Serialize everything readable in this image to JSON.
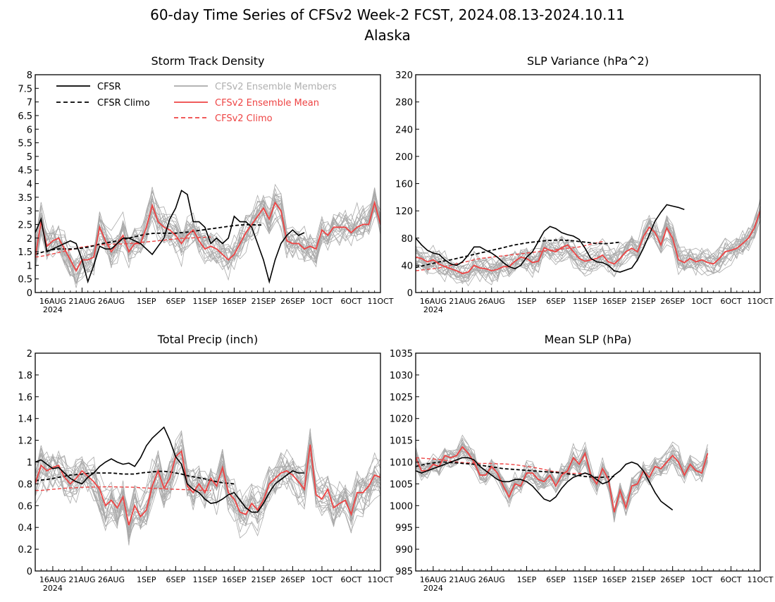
{
  "header": {
    "title": "60-day Time Series of CFSv2 Week-2 FCST, 2024.08.13-2024.10.11",
    "subtitle": "Alaska"
  },
  "colors": {
    "cfsr": "#000000",
    "cfsr_climo": "#000000",
    "members": "#aaaaaa",
    "ens_mean": "#ee4444",
    "cfsv2_climo": "#ee4444"
  },
  "legend": {
    "cfsr": "CFSR",
    "cfsr_climo": "CFSR Climo",
    "members": "CFSv2 Ensemble Members",
    "ens_mean": "CFSv2 Ensemble Mean",
    "cfsv2_climo": "CFSv2 Climo"
  },
  "x_axis": {
    "year_label": "2024",
    "ticks": [
      {
        "label": "16AUG",
        "day": 3
      },
      {
        "label": "21AUG",
        "day": 8
      },
      {
        "label": "26AUG",
        "day": 13
      },
      {
        "label": "1SEP",
        "day": 19
      },
      {
        "label": "6SEP",
        "day": 24
      },
      {
        "label": "11SEP",
        "day": 29
      },
      {
        "label": "16SEP",
        "day": 34
      },
      {
        "label": "21SEP",
        "day": 39
      },
      {
        "label": "26SEP",
        "day": 44
      },
      {
        "label": "1OCT",
        "day": 49
      },
      {
        "label": "6OCT",
        "day": 54
      },
      {
        "label": "11OCT",
        "day": 59
      }
    ]
  },
  "chart_data": [
    {
      "type": "line",
      "title": "Storm Track Density",
      "ylim": [
        0,
        8
      ],
      "yticks": [
        "0",
        "0.5",
        "1",
        "1.5",
        "2",
        "2.5",
        "3",
        "3.5",
        "4",
        "4.5",
        "5",
        "5.5",
        "6",
        "6.5",
        "7",
        "7.5",
        "8"
      ],
      "member_spread": 0.75,
      "series": [
        {
          "role": "cfsr",
          "values": [
            2.2,
            2.7,
            1.5,
            1.6,
            1.7,
            1.8,
            1.9,
            1.8,
            1.2,
            0.4,
            1.0,
            1.7,
            1.6,
            1.6,
            1.8,
            2.0,
            2.0,
            1.9,
            1.8,
            1.6,
            1.4,
            1.7,
            2.0,
            2.7,
            3.1,
            3.75,
            3.6,
            2.6,
            2.6,
            2.4,
            1.8,
            2.0,
            1.8,
            2.0,
            2.8,
            2.6,
            2.6,
            2.4,
            1.8,
            1.2,
            0.4,
            1.2,
            1.8,
            2.1,
            2.3,
            2.1,
            2.2
          ]
        },
        {
          "role": "cfsr_climo",
          "values": [
            1.4,
            1.47,
            1.53,
            1.58,
            1.6,
            1.6,
            1.6,
            1.61,
            1.63,
            1.67,
            1.72,
            1.78,
            1.82,
            1.86,
            1.9,
            1.95,
            2.0,
            2.05,
            2.1,
            2.14,
            2.17,
            2.18,
            2.18,
            2.18,
            2.18,
            2.2,
            2.22,
            2.25,
            2.28,
            2.31,
            2.34,
            2.37,
            2.4,
            2.43,
            2.46,
            2.48,
            2.49,
            2.49,
            2.48,
            2.48
          ]
        },
        {
          "role": "ens_mean",
          "values": [
            1.3,
            2.6,
            1.7,
            1.9,
            2.0,
            1.6,
            1.2,
            0.8,
            1.2,
            1.2,
            1.3,
            2.4,
            1.9,
            1.5,
            1.8,
            2.1,
            1.5,
            1.8,
            1.8,
            2.4,
            3.2,
            2.6,
            2.4,
            2.3,
            2.1,
            1.8,
            2.1,
            2.3,
            1.9,
            1.6,
            1.7,
            1.6,
            1.4,
            1.2,
            1.4,
            1.8,
            2.2,
            2.5,
            2.8,
            3.1,
            2.7,
            3.3,
            3.0,
            1.9,
            1.8,
            1.8,
            1.6,
            1.7,
            1.6,
            2.3,
            2.1,
            2.4,
            2.4,
            2.4,
            2.2,
            2.4,
            2.5,
            2.5,
            3.3,
            2.5
          ]
        },
        {
          "role": "cfsv2_climo",
          "values": [
            1.3,
            1.33,
            1.37,
            1.42,
            1.47,
            1.52,
            1.57,
            1.62,
            1.67,
            1.7,
            1.73,
            1.75,
            1.76,
            1.77,
            1.78,
            1.79,
            1.8,
            1.82,
            1.84,
            1.86,
            1.88,
            1.9,
            1.92,
            1.95,
            1.97,
            1.99,
            2.0,
            2.01,
            2.02,
            2.03,
            2.04
          ]
        }
      ]
    },
    {
      "type": "line",
      "title": "SLP Variance (hPa^2)",
      "ylim": [
        0,
        320
      ],
      "yticks": [
        "0",
        "40",
        "80",
        "120",
        "160",
        "200",
        "240",
        "280",
        "320"
      ],
      "member_spread": 22,
      "series": [
        {
          "role": "cfsr",
          "values": [
            80,
            70,
            62,
            58,
            56,
            48,
            42,
            40,
            45,
            55,
            67,
            67,
            62,
            58,
            52,
            44,
            38,
            35,
            40,
            52,
            60,
            75,
            90,
            97,
            94,
            88,
            85,
            83,
            78,
            65,
            50,
            45,
            44,
            40,
            32,
            30,
            33,
            36,
            48,
            65,
            85,
            105,
            118,
            129,
            127,
            125,
            122
          ]
        },
        {
          "role": "cfsr_climo",
          "values": [
            37,
            38.8,
            41,
            43,
            45,
            46.5,
            48,
            50,
            52,
            54,
            56,
            58,
            60,
            62,
            64,
            66,
            68,
            70,
            71.5,
            73,
            74,
            75,
            76,
            76.5,
            77,
            77,
            76.5,
            76,
            75,
            74,
            73,
            72,
            72,
            72,
            73,
            74
          ]
        },
        {
          "role": "ens_mean",
          "values": [
            52,
            50,
            45,
            48,
            42,
            38,
            35,
            32,
            28,
            30,
            40,
            36,
            35,
            32,
            34,
            38,
            38,
            46,
            52,
            50,
            44,
            46,
            66,
            62,
            60,
            66,
            70,
            60,
            50,
            46,
            48,
            50,
            55,
            45,
            42,
            50,
            60,
            65,
            60,
            82,
            96,
            88,
            70,
            95,
            80,
            48,
            44,
            50,
            45,
            48,
            44,
            42,
            50,
            60,
            62,
            65,
            72,
            80,
            95,
            120,
            124
          ]
        },
        {
          "role": "cfsv2_climo",
          "values": [
            32,
            33,
            34,
            35,
            36,
            38,
            40,
            42,
            44,
            46,
            48,
            50,
            51,
            52,
            53,
            54,
            55,
            56,
            57,
            58,
            59,
            60,
            61,
            62,
            63,
            64,
            65,
            66,
            67,
            69,
            71,
            73,
            75
          ]
        }
      ]
    },
    {
      "type": "line",
      "title": "Total Precip (inch)",
      "ylim": [
        0,
        2
      ],
      "yticks": [
        "0",
        "0.2",
        "0.4",
        "0.6",
        "0.8",
        "1",
        "1.2",
        "1.4",
        "1.6",
        "1.8",
        "2"
      ],
      "member_spread": 0.22,
      "series": [
        {
          "role": "cfsr",
          "values": [
            1.0,
            1.02,
            0.98,
            0.94,
            0.95,
            0.9,
            0.85,
            0.82,
            0.8,
            0.86,
            0.9,
            0.96,
            1.0,
            1.03,
            1.0,
            0.98,
            0.99,
            0.96,
            1.04,
            1.15,
            1.22,
            1.27,
            1.32,
            1.2,
            1.05,
            0.98,
            0.8,
            0.75,
            0.72,
            0.66,
            0.62,
            0.63,
            0.66,
            0.7,
            0.72,
            0.65,
            0.58,
            0.54,
            0.54,
            0.62,
            0.72,
            0.8,
            0.84,
            0.88,
            0.92,
            0.9,
            0.9
          ]
        },
        {
          "role": "cfsr_climo",
          "values": [
            0.83,
            0.835,
            0.84,
            0.85,
            0.86,
            0.87,
            0.88,
            0.885,
            0.89,
            0.895,
            0.9,
            0.9,
            0.9,
            0.9,
            0.895,
            0.89,
            0.89,
            0.89,
            0.9,
            0.905,
            0.91,
            0.915,
            0.915,
            0.91,
            0.9,
            0.89,
            0.875,
            0.865,
            0.855,
            0.845,
            0.83,
            0.82,
            0.81,
            0.805,
            0.8
          ]
        },
        {
          "role": "ens_mean",
          "values": [
            0.8,
            0.97,
            0.92,
            0.95,
            0.97,
            0.86,
            0.8,
            0.85,
            0.92,
            0.87,
            0.82,
            0.75,
            0.6,
            0.65,
            0.58,
            0.68,
            0.42,
            0.6,
            0.5,
            0.56,
            0.78,
            0.92,
            0.76,
            0.85,
            1.05,
            1.1,
            0.78,
            0.72,
            0.8,
            0.72,
            0.85,
            0.78,
            0.95,
            0.72,
            0.66,
            0.54,
            0.52,
            0.62,
            0.56,
            0.65,
            0.8,
            0.85,
            0.9,
            0.92,
            0.88,
            0.82,
            0.75,
            1.16,
            0.7,
            0.66,
            0.75,
            0.58,
            0.62,
            0.65,
            0.52,
            0.72,
            0.72,
            0.78,
            0.88,
            0.86
          ]
        },
        {
          "role": "cfsv2_climo",
          "values": [
            0.74,
            0.74,
            0.745,
            0.75,
            0.755,
            0.76,
            0.762,
            0.765,
            0.768,
            0.77,
            0.771,
            0.772,
            0.773,
            0.773,
            0.772,
            0.771,
            0.77,
            0.768,
            0.765,
            0.762,
            0.76,
            0.757,
            0.755,
            0.752,
            0.75,
            0.748,
            0.746,
            0.744,
            0.742,
            0.741,
            0.74
          ]
        }
      ]
    },
    {
      "type": "line",
      "title": "Mean SLP (hPa)",
      "ylim": [
        985,
        1035
      ],
      "yticks": [
        "985",
        "990",
        "995",
        "1000",
        "1005",
        "1010",
        "1015",
        "1020",
        "1025",
        "1030",
        "1035"
      ],
      "member_spread": 2.8,
      "series": [
        {
          "role": "cfsr",
          "values": [
            1008,
            1007.5,
            1008,
            1008.5,
            1009,
            1009.5,
            1010,
            1010.5,
            1011,
            1011,
            1010.5,
            1009,
            1008,
            1007,
            1006,
            1005.5,
            1005.5,
            1006,
            1006,
            1005.5,
            1004.5,
            1003,
            1001.5,
            1001,
            1002,
            1004,
            1005.5,
            1006.5,
            1007,
            1007.5,
            1007,
            1006,
            1005,
            1005.5,
            1007,
            1008,
            1009.5,
            1010,
            1009.5,
            1008,
            1005.5,
            1003,
            1001,
            1000,
            999
          ]
        },
        {
          "role": "cfsr_climo",
          "values": [
            1009,
            1009.3,
            1009.6,
            1009.8,
            1010,
            1010,
            1009.9,
            1009.8,
            1009.7,
            1009.6,
            1009.5,
            1009.3,
            1009.1,
            1008.9,
            1008.7,
            1008.5,
            1008.4,
            1008.3,
            1008.2,
            1008.1,
            1008,
            1007.9,
            1007.8,
            1007.7,
            1007.6,
            1007.5,
            1007.3,
            1007.1,
            1006.9,
            1006.7,
            1006.6,
            1006.5,
            1006.5,
            1006.6,
            1006.7
          ]
        },
        {
          "role": "ens_mean",
          "values": [
            1011,
            1008,
            1008,
            1009.5,
            1009,
            1011.5,
            1011,
            1011.5,
            1013.5,
            1012,
            1010,
            1007,
            1007,
            1009,
            1007.5,
            1004.5,
            1002,
            1005,
            1004.5,
            1007.5,
            1007.5,
            1006,
            1005.5,
            1007,
            1004.5,
            1007,
            1008,
            1011,
            1009.5,
            1012,
            1007,
            1005,
            1008.5,
            1006,
            998.5,
            1003.5,
            999.5,
            1004.5,
            1005,
            1008,
            1006.5,
            1009,
            1008.5,
            1010,
            1011.5,
            1010,
            1007,
            1009.5,
            1008,
            1007.5,
            1012
          ]
        },
        {
          "role": "cfsv2_climo",
          "values": [
            1011,
            1010.9,
            1010.8,
            1010.7,
            1010.6,
            1010.4,
            1010.2,
            1010,
            1009.9,
            1009.8,
            1009.8,
            1009.7,
            1009.7,
            1009.7,
            1009.6,
            1009.6,
            1009.5,
            1009.4,
            1009.2,
            1009,
            1008.8,
            1008.6,
            1008.3,
            1008,
            1007.8,
            1007.6,
            1007.5,
            1007.4,
            1007.4,
            1007.4,
            1007.4
          ]
        }
      ]
    }
  ]
}
